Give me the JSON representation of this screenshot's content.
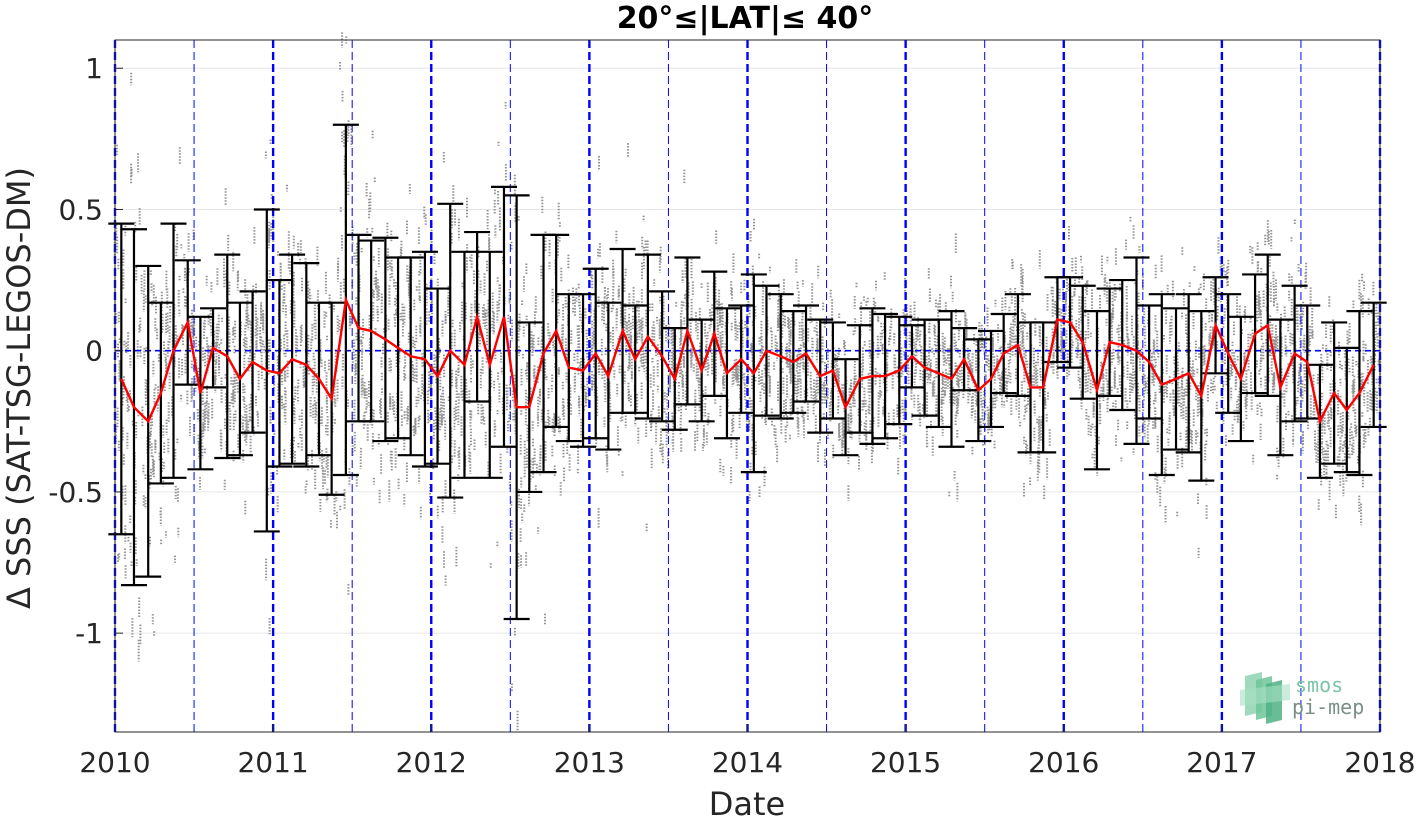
{
  "chart_data": {
    "type": "scatter",
    "title": "20°≤|LAT|≤ 40°",
    "xlabel": "Date",
    "ylabel": "Δ SSS (SAT-TSG-LEGOS-DM)",
    "xlim": [
      2010.0,
      2018.0
    ],
    "ylim": [
      -1.35,
      1.1
    ],
    "x_tick_labels": [
      "2010",
      "2011",
      "2012",
      "2013",
      "2014",
      "2015",
      "2016",
      "2017",
      "2018"
    ],
    "x_tick_values": [
      2010,
      2011,
      2012,
      2013,
      2014,
      2015,
      2016,
      2017,
      2018
    ],
    "y_tick_labels": [
      "-1",
      "-0.5",
      "0",
      "0.5",
      "1"
    ],
    "y_tick_values": [
      -1,
      -0.5,
      0,
      0.5,
      1
    ],
    "grid": true,
    "zero_line": {
      "y": 0,
      "color": "#0000ff",
      "style": "dashed"
    },
    "year_lines": [
      2010,
      2011,
      2012,
      2013,
      2014,
      2015,
      2016,
      2017,
      2018
    ],
    "half_year_lines": [
      2010.5,
      2011.5,
      2012.5,
      2013.5,
      2014.5,
      2015.5,
      2016.5,
      2017.5
    ],
    "colors": {
      "mean_line": "#ff0000",
      "errorbar": "#000000",
      "scatter": "#808080",
      "guides": "#0000ff",
      "grid": "#e6e6e6"
    },
    "series": [
      {
        "kind": "monthly_mean_with_std",
        "x": [
          2010.04,
          2010.12,
          2010.21,
          2010.29,
          2010.37,
          2010.46,
          2010.54,
          2010.62,
          2010.71,
          2010.79,
          2010.87,
          2010.96,
          2011.04,
          2011.12,
          2011.21,
          2011.29,
          2011.37,
          2011.46,
          2011.54,
          2011.62,
          2011.71,
          2011.79,
          2011.87,
          2011.96,
          2012.04,
          2012.12,
          2012.21,
          2012.29,
          2012.37,
          2012.46,
          2012.54,
          2012.62,
          2012.71,
          2012.79,
          2012.87,
          2012.96,
          2013.04,
          2013.12,
          2013.21,
          2013.29,
          2013.37,
          2013.46,
          2013.54,
          2013.62,
          2013.71,
          2013.79,
          2013.87,
          2013.96,
          2014.04,
          2014.12,
          2014.21,
          2014.29,
          2014.37,
          2014.46,
          2014.54,
          2014.62,
          2014.71,
          2014.79,
          2014.87,
          2014.96,
          2015.04,
          2015.12,
          2015.21,
          2015.29,
          2015.37,
          2015.46,
          2015.54,
          2015.62,
          2015.71,
          2015.79,
          2015.87,
          2015.96,
          2016.04,
          2016.12,
          2016.21,
          2016.29,
          2016.37,
          2016.46,
          2016.54,
          2016.62,
          2016.71,
          2016.79,
          2016.87,
          2016.96,
          2017.04,
          2017.12,
          2017.21,
          2017.29,
          2017.37,
          2017.46,
          2017.54,
          2017.62,
          2017.71,
          2017.79,
          2017.87,
          2017.96
        ],
        "y": [
          -0.1,
          -0.2,
          -0.25,
          -0.15,
          0.0,
          0.1,
          -0.15,
          0.01,
          -0.02,
          -0.1,
          -0.04,
          -0.07,
          -0.08,
          -0.03,
          -0.05,
          -0.1,
          -0.17,
          0.18,
          0.08,
          0.07,
          0.04,
          0.01,
          -0.02,
          -0.03,
          -0.09,
          0.0,
          -0.05,
          0.12,
          -0.05,
          0.12,
          -0.2,
          -0.2,
          -0.01,
          0.07,
          -0.06,
          -0.07,
          -0.01,
          -0.09,
          0.07,
          -0.03,
          0.05,
          -0.02,
          -0.1,
          0.07,
          -0.07,
          0.06,
          -0.08,
          -0.03,
          -0.08,
          0.0,
          -0.02,
          -0.04,
          -0.01,
          -0.09,
          -0.07,
          -0.2,
          -0.1,
          -0.09,
          -0.09,
          -0.07,
          -0.02,
          -0.06,
          -0.08,
          -0.1,
          -0.03,
          -0.14,
          -0.1,
          -0.01,
          0.02,
          -0.13,
          -0.13,
          0.11,
          0.1,
          0.03,
          -0.14,
          0.03,
          0.02,
          0.0,
          -0.04,
          -0.12,
          -0.1,
          -0.08,
          -0.16,
          0.09,
          -0.01,
          -0.1,
          0.06,
          0.09,
          -0.13,
          -0.01,
          -0.04,
          -0.25,
          -0.15,
          -0.21,
          -0.15,
          -0.05
        ],
        "std": [
          0.55,
          0.63,
          0.55,
          0.32,
          0.45,
          0.22,
          0.27,
          0.14,
          0.36,
          0.27,
          0.25,
          0.57,
          0.33,
          0.37,
          0.36,
          0.27,
          0.34,
          0.62,
          0.33,
          0.32,
          0.36,
          0.32,
          0.35,
          0.38,
          0.31,
          0.52,
          0.4,
          0.3,
          0.4,
          0.46,
          0.75,
          0.3,
          0.42,
          0.34,
          0.26,
          0.27,
          0.3,
          0.26,
          0.29,
          0.19,
          0.29,
          0.23,
          0.18,
          0.26,
          0.18,
          0.22,
          0.23,
          0.19,
          0.35,
          0.23,
          0.22,
          0.18,
          0.17,
          0.2,
          0.17,
          0.17,
          0.19,
          0.24,
          0.22,
          0.19,
          0.11,
          0.17,
          0.19,
          0.24,
          0.11,
          0.18,
          0.17,
          0.14,
          0.18,
          0.23,
          0.23,
          0.15,
          0.16,
          0.2,
          0.28,
          0.19,
          0.23,
          0.33,
          0.2,
          0.32,
          0.25,
          0.28,
          0.3,
          0.17,
          0.21,
          0.22,
          0.21,
          0.25,
          0.24,
          0.24,
          0.2,
          0.2,
          0.25,
          0.22,
          0.29,
          0.22
        ]
      }
    ]
  },
  "logo": {
    "line1": "smos",
    "line2": "pi-mep"
  }
}
